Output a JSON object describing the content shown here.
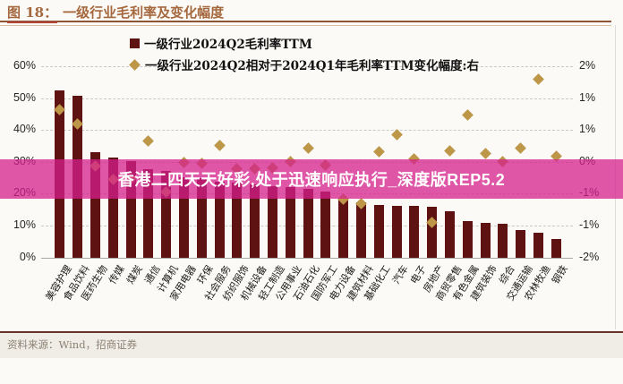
{
  "figure": {
    "label": "图 18：",
    "title": "一级行业毛利率及变化幅度"
  },
  "legend": [
    {
      "marker": "square",
      "color": "#7d120f",
      "label": "一级行业2024Q2毛利率TTM"
    },
    {
      "marker": "diamond",
      "color": "#bd9648",
      "label": "一级行业2024Q2相对于2024Q1年毛利率TTM变化幅度:右"
    }
  ],
  "watermark": {
    "text": "香港二四天天好彩,处于迅速响应执行_深度版REP5.2",
    "band_color": "#d61f8c"
  },
  "footer": {
    "text": "资料来源：Wind，招商证券"
  },
  "colors": {
    "bar": "#5f1212",
    "diamond": "#bd9648",
    "title": "#a5683e"
  },
  "chart_data": {
    "type": "bar",
    "title": "一级行业毛利率及变化幅度",
    "categories": [
      "美容护理",
      "食品饮料",
      "医药生物",
      "传媒",
      "煤炭",
      "通信",
      "计算机",
      "家用电器",
      "环保",
      "社会服务",
      "纺织服饰",
      "机械设备",
      "轻工制造",
      "公用事业",
      "石油石化",
      "国防军工",
      "电力设备",
      "建筑材料",
      "基础化工",
      "汽车",
      "电子",
      "房地产",
      "商贸零售",
      "有色金属",
      "建筑装饰",
      "综合",
      "交通运输",
      "农林牧渔",
      "钢铁"
    ],
    "series": [
      {
        "name": "一级行业2024Q2毛利率TTM",
        "type": "bar",
        "axis": "left",
        "unit": "%",
        "values": [
          52.3,
          50.6,
          33.0,
          31.3,
          30.3,
          27.6,
          27.1,
          25.2,
          24.8,
          23.8,
          23.4,
          22.9,
          22.4,
          22.0,
          21.5,
          20.6,
          18.2,
          17.4,
          16.6,
          16.3,
          16.1,
          15.8,
          14.6,
          11.3,
          10.9,
          10.6,
          8.5,
          7.8,
          5.7
        ]
      },
      {
        "name": "一级行业2024Q2相对于2024Q1年毛利率TTM变化幅度:右",
        "type": "scatter-diamond",
        "axis": "right",
        "unit": "%",
        "values": [
          1.09,
          0.8,
          -0.08,
          -0.36,
          -0.35,
          0.44,
          -0.64,
          -0.02,
          -0.04,
          0.34,
          -0.15,
          -0.15,
          -0.12,
          0.01,
          0.29,
          -0.07,
          -0.78,
          -0.88,
          0.22,
          0.56,
          0.06,
          -1.27,
          0.23,
          0.98,
          0.17,
          0.0,
          0.28,
          1.73,
          0.11
        ]
      }
    ],
    "left_axis": {
      "min": 0,
      "max": 60,
      "ticks": [
        "60%",
        "50%",
        "40%",
        "30%",
        "20%",
        "10%",
        "0%"
      ]
    },
    "right_axis": {
      "min": -2,
      "max": 2,
      "ticks": [
        "2%",
        "1%",
        "1%",
        "0%",
        "-1%",
        "-1%",
        "-2%"
      ]
    },
    "grid": "horizontal-dashed",
    "legend_position": "top"
  }
}
